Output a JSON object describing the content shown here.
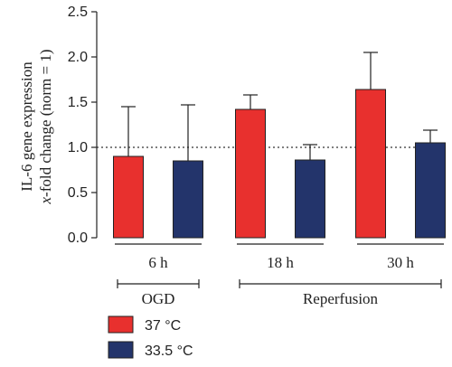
{
  "chart_data": {
    "type": "bar",
    "ylabel_line1": "IL-6 gene expression",
    "ylabel_line2_italic": "x",
    "ylabel_line2_rest": "-fold change (norm = 1)",
    "ylim": [
      0,
      2.5
    ],
    "yticks": [
      "0.0",
      "0.5",
      "1.0",
      "1.5",
      "2.0",
      "2.5"
    ],
    "reference_line": 1.0,
    "categories": [
      "6 h",
      "18 h",
      "30 h"
    ],
    "groups": [
      {
        "label": "OGD",
        "categories": [
          "6 h"
        ]
      },
      {
        "label": "Reperfusion",
        "categories": [
          "18 h",
          "30 h"
        ]
      }
    ],
    "series": [
      {
        "name": "37 °C",
        "color": "#e8302e",
        "values": [
          0.9,
          1.42,
          1.64
        ],
        "errors": [
          0.55,
          0.16,
          0.41
        ]
      },
      {
        "name": "33.5 °C",
        "color": "#23346b",
        "values": [
          0.85,
          0.86,
          1.05
        ],
        "errors": [
          0.62,
          0.17,
          0.14
        ]
      }
    ]
  }
}
